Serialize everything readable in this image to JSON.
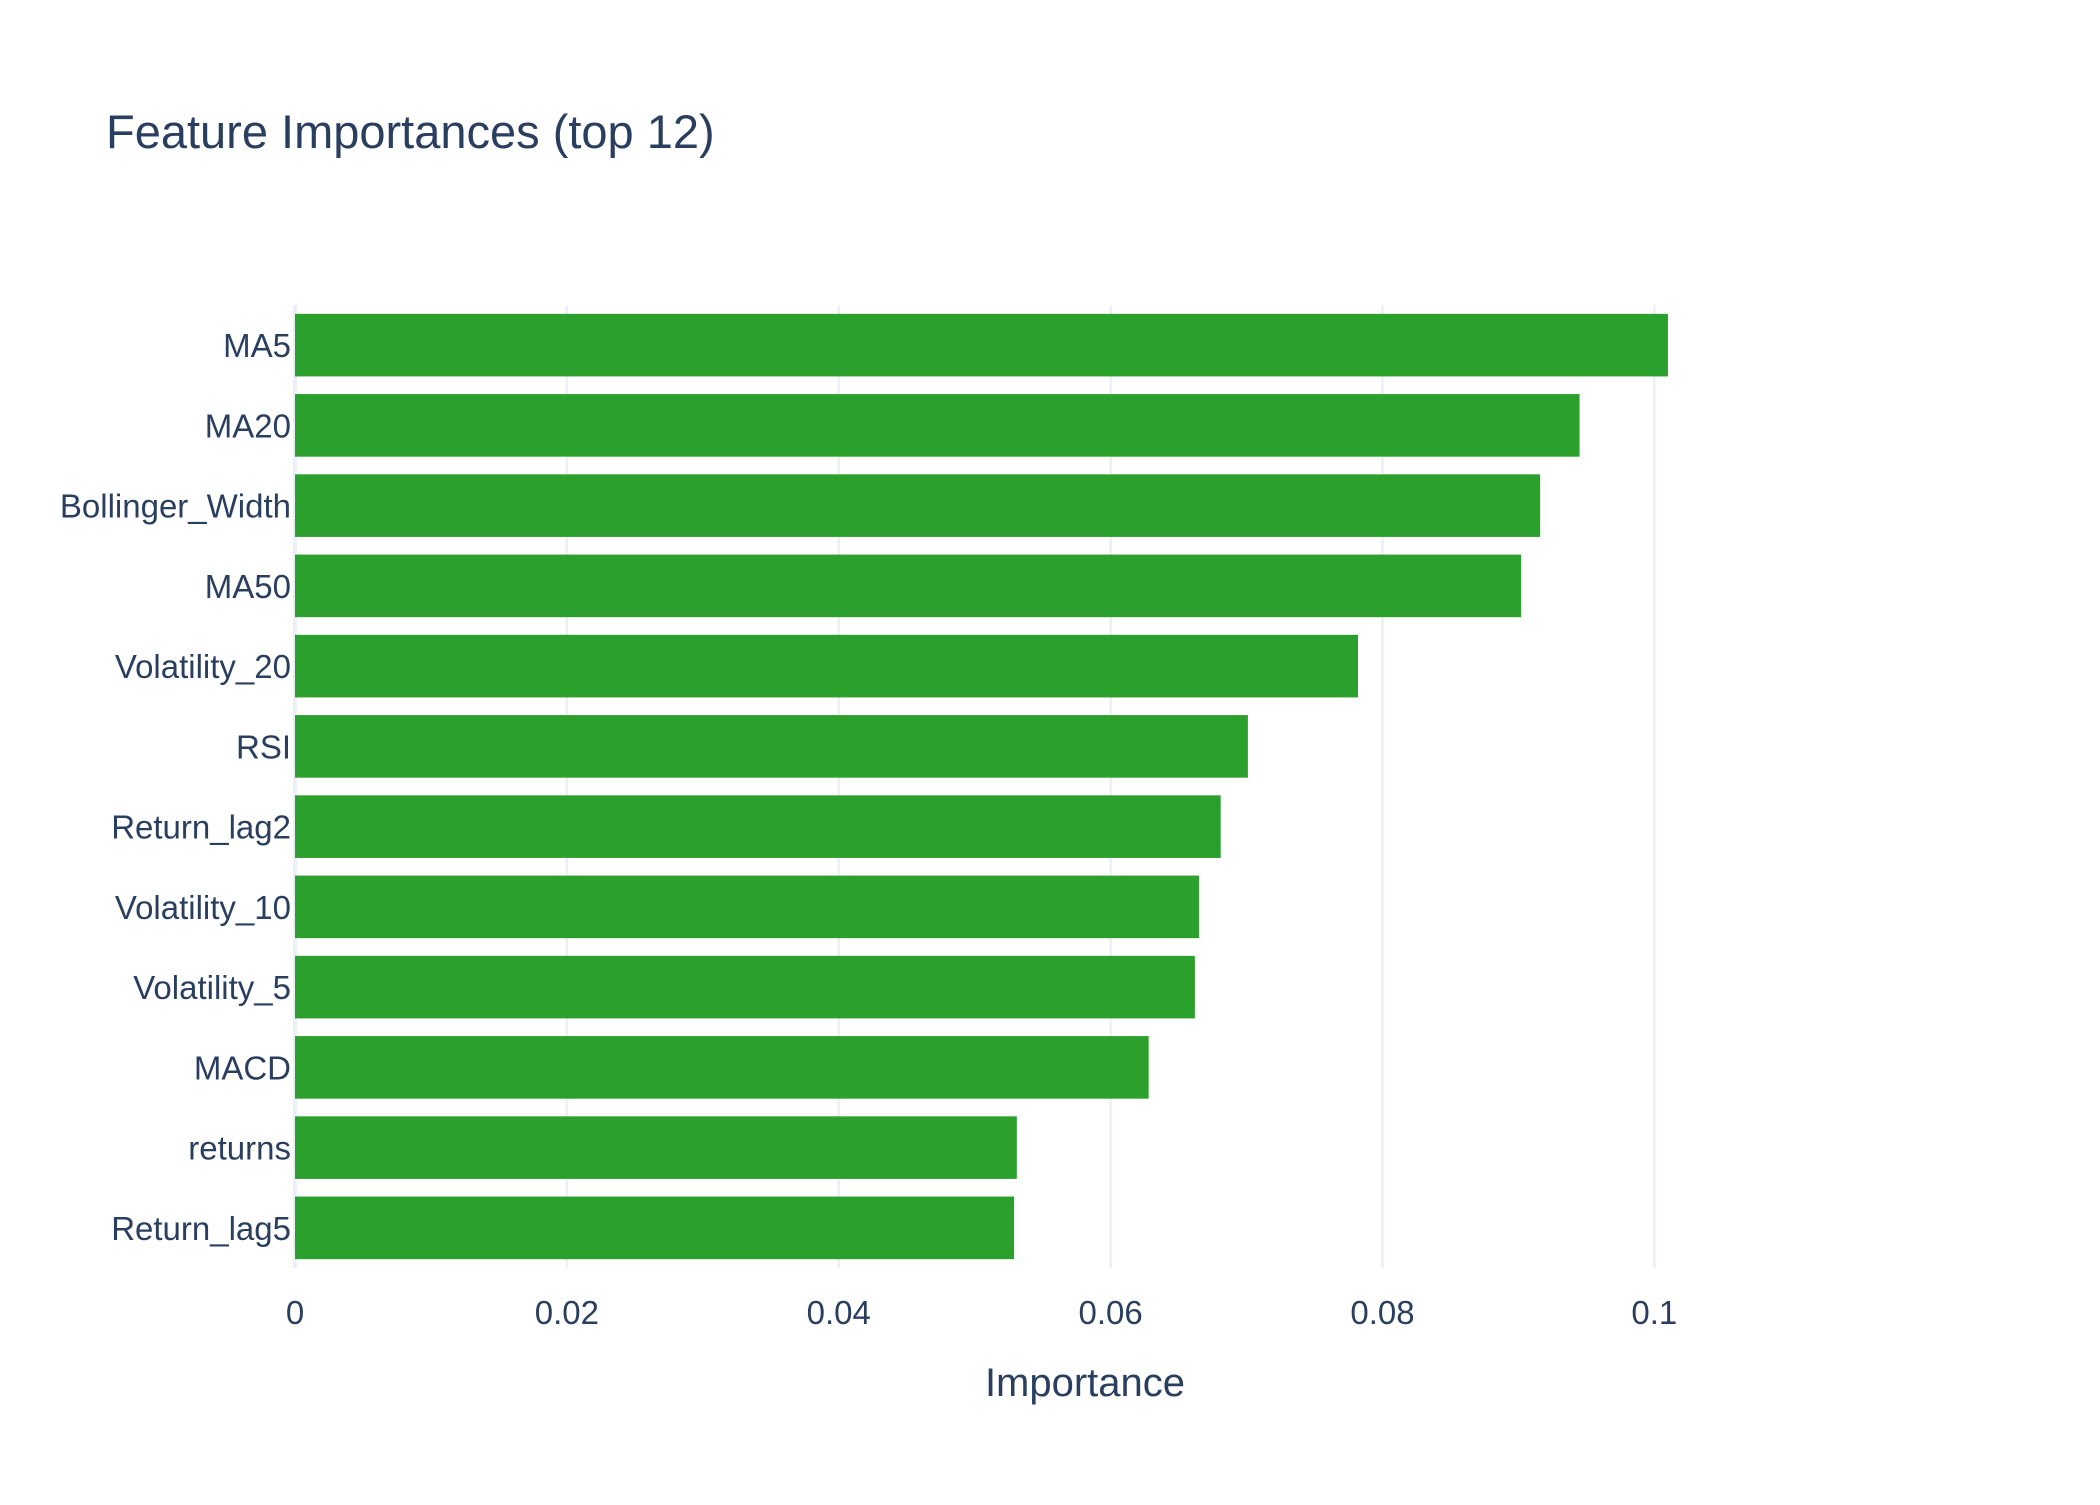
{
  "chart_data": {
    "type": "bar",
    "orientation": "horizontal",
    "title": "Feature Importances (top 12)",
    "xlabel": "Importance",
    "ylabel": "",
    "categories": [
      "MA5",
      "MA20",
      "Bollinger_Width",
      "MA50",
      "Volatility_20",
      "RSI",
      "Return_lag2",
      "Volatility_10",
      "Volatility_5",
      "MACD",
      "returns",
      "Return_lag5"
    ],
    "values": [
      0.101,
      0.0945,
      0.0916,
      0.0902,
      0.0782,
      0.0701,
      0.0681,
      0.0665,
      0.0662,
      0.0628,
      0.0531,
      0.0529
    ],
    "xlim": [
      0,
      0.1166
    ],
    "xticks": [
      0,
      0.02,
      0.04,
      0.06,
      0.08,
      0.1
    ],
    "xtick_labels": [
      "0",
      "0.02",
      "0.04",
      "0.06",
      "0.08",
      "0.1"
    ],
    "grid": true,
    "bar_color": "#2ca02c",
    "text_color": "#2a3f5f",
    "grid_color": "#ebf0f8"
  }
}
